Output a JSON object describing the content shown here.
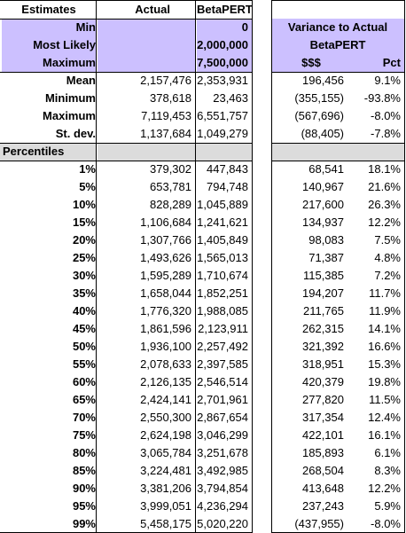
{
  "headers": {
    "estimates": "Estimates",
    "actual": "Actual",
    "betapert": "BetaPERT"
  },
  "inputs": [
    {
      "label": "Min",
      "actual": "",
      "betapert": "0"
    },
    {
      "label": "Most Likely",
      "actual": "",
      "betapert": "2,000,000"
    },
    {
      "label": "Maximum",
      "actual": "",
      "betapert": "7,500,000"
    }
  ],
  "variance_header": {
    "title": "Variance to Actual",
    "subtitle": "BetaPERT",
    "col_dollars": "$$$",
    "col_pct": "Pct"
  },
  "stats": [
    {
      "label": "Mean",
      "actual": "2,157,476",
      "betapert": "2,353,931",
      "var_dollars": "196,456",
      "var_pct": "9.1%"
    },
    {
      "label": "Minimum",
      "actual": "378,618",
      "betapert": "23,463",
      "var_dollars": "(355,155)",
      "var_pct": "-93.8%"
    },
    {
      "label": "Maximum",
      "actual": "7,119,453",
      "betapert": "6,551,757",
      "var_dollars": "(567,696)",
      "var_pct": "-8.0%"
    },
    {
      "label": "St. dev.",
      "actual": "1,137,684",
      "betapert": "1,049,279",
      "var_dollars": "(88,405)",
      "var_pct": "-7.8%"
    }
  ],
  "percentiles_label": "Percentiles",
  "percentiles": [
    {
      "label": "1%",
      "actual": "379,302",
      "betapert": "447,843",
      "var_dollars": "68,541",
      "var_pct": "18.1%"
    },
    {
      "label": "5%",
      "actual": "653,781",
      "betapert": "794,748",
      "var_dollars": "140,967",
      "var_pct": "21.6%"
    },
    {
      "label": "10%",
      "actual": "828,289",
      "betapert": "1,045,889",
      "var_dollars": "217,600",
      "var_pct": "26.3%"
    },
    {
      "label": "15%",
      "actual": "1,106,684",
      "betapert": "1,241,621",
      "var_dollars": "134,937",
      "var_pct": "12.2%"
    },
    {
      "label": "20%",
      "actual": "1,307,766",
      "betapert": "1,405,849",
      "var_dollars": "98,083",
      "var_pct": "7.5%"
    },
    {
      "label": "25%",
      "actual": "1,493,626",
      "betapert": "1,565,013",
      "var_dollars": "71,387",
      "var_pct": "4.8%"
    },
    {
      "label": "30%",
      "actual": "1,595,289",
      "betapert": "1,710,674",
      "var_dollars": "115,385",
      "var_pct": "7.2%"
    },
    {
      "label": "35%",
      "actual": "1,658,044",
      "betapert": "1,852,251",
      "var_dollars": "194,207",
      "var_pct": "11.7%"
    },
    {
      "label": "40%",
      "actual": "1,776,320",
      "betapert": "1,988,085",
      "var_dollars": "211,765",
      "var_pct": "11.9%"
    },
    {
      "label": "45%",
      "actual": "1,861,596",
      "betapert": "2,123,911",
      "var_dollars": "262,315",
      "var_pct": "14.1%"
    },
    {
      "label": "50%",
      "actual": "1,936,100",
      "betapert": "2,257,492",
      "var_dollars": "321,392",
      "var_pct": "16.6%"
    },
    {
      "label": "55%",
      "actual": "2,078,633",
      "betapert": "2,397,585",
      "var_dollars": "318,951",
      "var_pct": "15.3%"
    },
    {
      "label": "60%",
      "actual": "2,126,135",
      "betapert": "2,546,514",
      "var_dollars": "420,379",
      "var_pct": "19.8%"
    },
    {
      "label": "65%",
      "actual": "2,424,141",
      "betapert": "2,701,961",
      "var_dollars": "277,820",
      "var_pct": "11.5%"
    },
    {
      "label": "70%",
      "actual": "2,550,300",
      "betapert": "2,867,654",
      "var_dollars": "317,354",
      "var_pct": "12.4%"
    },
    {
      "label": "75%",
      "actual": "2,624,198",
      "betapert": "3,046,299",
      "var_dollars": "422,101",
      "var_pct": "16.1%"
    },
    {
      "label": "80%",
      "actual": "3,065,784",
      "betapert": "3,251,678",
      "var_dollars": "185,893",
      "var_pct": "6.1%"
    },
    {
      "label": "85%",
      "actual": "3,224,481",
      "betapert": "3,492,985",
      "var_dollars": "268,504",
      "var_pct": "8.3%"
    },
    {
      "label": "90%",
      "actual": "3,381,206",
      "betapert": "3,794,854",
      "var_dollars": "413,648",
      "var_pct": "12.2%"
    },
    {
      "label": "95%",
      "actual": "3,999,051",
      "betapert": "4,236,294",
      "var_dollars": "237,243",
      "var_pct": "5.9%"
    },
    {
      "label": "99%",
      "actual": "5,458,175",
      "betapert": "5,020,220",
      "var_dollars": "(437,955)",
      "var_pct": "-8.0%"
    }
  ],
  "colors": {
    "input_fill": "#ccc0ff",
    "section_fill": "#dcdcdc"
  }
}
